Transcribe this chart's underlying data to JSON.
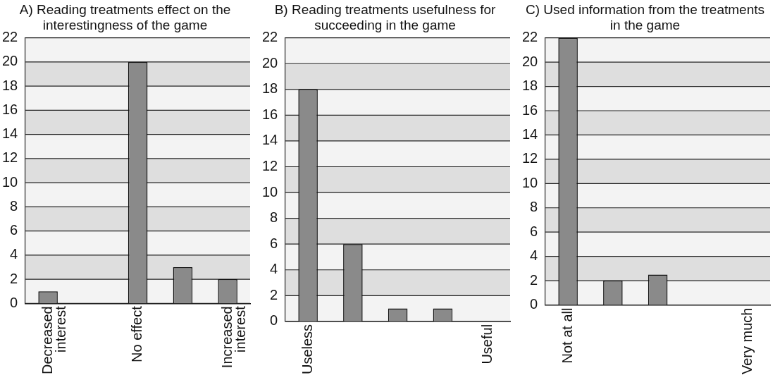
{
  "chart_data": [
    {
      "type": "bar",
      "title": "A) Reading treatments effect on the interestingness of the game",
      "categories": [
        "Decreased interest",
        null,
        "No effect",
        null,
        "Increased interest"
      ],
      "values": [
        1,
        0,
        20,
        3,
        2
      ],
      "color": "#8a8a8a",
      "ylim": [
        0,
        22
      ],
      "yticks": [
        0,
        2,
        4,
        6,
        8,
        10,
        12,
        14,
        16,
        18,
        20,
        22
      ],
      "grid": "y",
      "bands": [
        {
          "axis": "y",
          "from": 0,
          "to": 2,
          "color": "#f3f3f3"
        },
        {
          "axis": "y",
          "from": 2,
          "to": 4,
          "color": "#dedede"
        },
        {
          "axis": "y",
          "from": 4,
          "to": 6,
          "color": "#f3f3f3"
        },
        {
          "axis": "y",
          "from": 6,
          "to": 8,
          "color": "#dedede"
        },
        {
          "axis": "y",
          "from": 8,
          "to": 10,
          "color": "#f3f3f3"
        },
        {
          "axis": "y",
          "from": 10,
          "to": 12,
          "color": "#dedede"
        },
        {
          "axis": "y",
          "from": 12,
          "to": 14,
          "color": "#f3f3f3"
        },
        {
          "axis": "y",
          "from": 14,
          "to": 16,
          "color": "#dedede"
        },
        {
          "axis": "y",
          "from": 16,
          "to": 18,
          "color": "#f3f3f3"
        },
        {
          "axis": "y",
          "from": 18,
          "to": 20,
          "color": "#dedede"
        },
        {
          "axis": "y",
          "from": 20,
          "to": 22,
          "color": "#f3f3f3"
        }
      ]
    },
    {
      "type": "bar",
      "title": "B) Reading treatments usefulness for succeeding in the game",
      "categories": [
        "Useless",
        null,
        null,
        null,
        "Useful"
      ],
      "values": [
        18,
        6,
        1,
        1,
        0
      ],
      "color": "#8a8a8a",
      "ylim": [
        0,
        22
      ],
      "yticks": [
        0,
        2,
        4,
        6,
        8,
        10,
        12,
        14,
        16,
        18,
        20,
        22
      ],
      "grid": "y",
      "bands": [
        {
          "axis": "y",
          "from": 0,
          "to": 2,
          "color": "#f3f3f3"
        },
        {
          "axis": "y",
          "from": 2,
          "to": 4,
          "color": "#dedede"
        },
        {
          "axis": "y",
          "from": 4,
          "to": 6,
          "color": "#f3f3f3"
        },
        {
          "axis": "y",
          "from": 6,
          "to": 8,
          "color": "#dedede"
        },
        {
          "axis": "y",
          "from": 8,
          "to": 10,
          "color": "#f3f3f3"
        },
        {
          "axis": "y",
          "from": 10,
          "to": 12,
          "color": "#dedede"
        },
        {
          "axis": "y",
          "from": 12,
          "to": 14,
          "color": "#f3f3f3"
        },
        {
          "axis": "y",
          "from": 14,
          "to": 16,
          "color": "#dedede"
        },
        {
          "axis": "y",
          "from": 16,
          "to": 18,
          "color": "#f3f3f3"
        },
        {
          "axis": "y",
          "from": 18,
          "to": 20,
          "color": "#dedede"
        },
        {
          "axis": "y",
          "from": 20,
          "to": 22,
          "color": "#f3f3f3"
        }
      ]
    },
    {
      "type": "bar",
      "title": "C) Used information from the treatments in the game",
      "categories": [
        "Not at all",
        null,
        null,
        null,
        "Very much"
      ],
      "values": [
        22,
        2,
        2.5,
        0,
        0
      ],
      "color": "#8a8a8a",
      "ylim": [
        0,
        22
      ],
      "yticks": [
        0,
        2,
        4,
        6,
        8,
        10,
        12,
        14,
        16,
        18,
        20,
        22
      ],
      "grid": "y",
      "bands": [
        {
          "axis": "y",
          "from": 0,
          "to": 2,
          "color": "#f3f3f3"
        },
        {
          "axis": "y",
          "from": 2,
          "to": 4,
          "color": "#dedede"
        },
        {
          "axis": "y",
          "from": 4,
          "to": 6,
          "color": "#f3f3f3"
        },
        {
          "axis": "y",
          "from": 6,
          "to": 8,
          "color": "#dedede"
        },
        {
          "axis": "y",
          "from": 8,
          "to": 10,
          "color": "#f3f3f3"
        },
        {
          "axis": "y",
          "from": 10,
          "to": 12,
          "color": "#dedede"
        },
        {
          "axis": "y",
          "from": 12,
          "to": 14,
          "color": "#f3f3f3"
        },
        {
          "axis": "y",
          "from": 14,
          "to": 16,
          "color": "#dedede"
        },
        {
          "axis": "y",
          "from": 16,
          "to": 18,
          "color": "#f3f3f3"
        },
        {
          "axis": "y",
          "from": 18,
          "to": 20,
          "color": "#dedede"
        },
        {
          "axis": "y",
          "from": 20,
          "to": 22,
          "color": "#f3f3f3"
        }
      ]
    }
  ]
}
